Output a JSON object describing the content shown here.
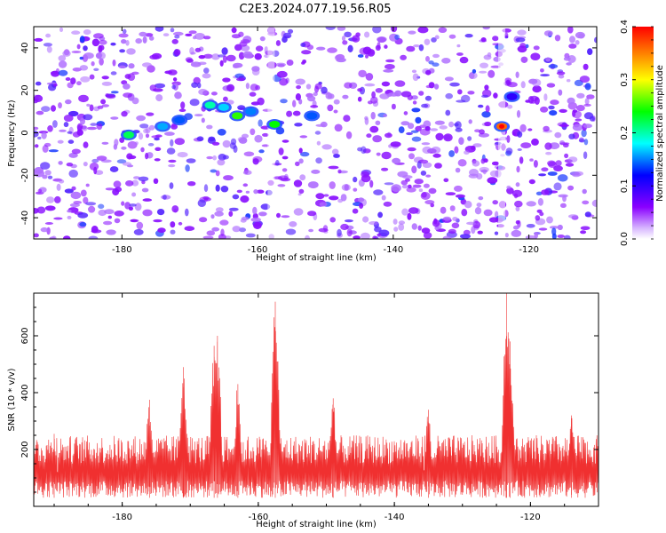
{
  "page_title": "C2E3.2024.077.19.56.R05",
  "chart_data": [
    {
      "type": "heatmap",
      "xlabel": "Height of straight line (km)",
      "ylabel": "Frequency (Hz)",
      "xlim": [
        -193,
        -110
      ],
      "ylim": [
        -50,
        50
      ],
      "x_ticks": [
        -180,
        -160,
        -140,
        -120
      ],
      "y_ticks": [
        -40,
        -20,
        0,
        20,
        40
      ],
      "colorbar": {
        "label": "Normalized spectral amplitude",
        "range": [
          0.0,
          0.4
        ],
        "ticks": [
          "0.0",
          "0.1",
          "0.2",
          "0.3",
          "0.4"
        ],
        "colors": [
          "#ffffff",
          "#8a00ff",
          "#0000ff",
          "#00ffff",
          "#00ff00",
          "#ffff00",
          "#ff0000"
        ]
      },
      "hotspots": [
        {
          "x": -179.0,
          "y": -1,
          "value": 0.22
        },
        {
          "x": -174.0,
          "y": 3,
          "value": 0.16
        },
        {
          "x": -171.5,
          "y": 6,
          "value": 0.14
        },
        {
          "x": -167.0,
          "y": 13,
          "value": 0.2
        },
        {
          "x": -165.0,
          "y": 12,
          "value": 0.17
        },
        {
          "x": -163.0,
          "y": 8,
          "value": 0.25
        },
        {
          "x": -161.0,
          "y": 10,
          "value": 0.15
        },
        {
          "x": -157.5,
          "y": 4,
          "value": 0.24
        },
        {
          "x": -152.0,
          "y": 8,
          "value": 0.14
        },
        {
          "x": -124.0,
          "y": 3,
          "value": 0.36
        },
        {
          "x": -122.5,
          "y": 17,
          "value": 0.1
        }
      ],
      "grid": false
    },
    {
      "type": "line",
      "xlabel": "Height of straight line (km)",
      "ylabel": "SNR (10 * v/v)",
      "xlim": [
        -193,
        -110
      ],
      "ylim": [
        0,
        750
      ],
      "x_ticks": [
        -180,
        -160,
        -140,
        -120
      ],
      "y_ticks": [
        200,
        400,
        600
      ],
      "color": "#f03030",
      "baseline": {
        "low": 30,
        "high": 230
      },
      "peaks": [
        {
          "x": -190.0,
          "y": 255
        },
        {
          "x": -176.0,
          "y": 375
        },
        {
          "x": -171.0,
          "y": 490
        },
        {
          "x": -166.5,
          "y": 565
        },
        {
          "x": -166.0,
          "y": 600
        },
        {
          "x": -163.0,
          "y": 430
        },
        {
          "x": -157.5,
          "y": 720
        },
        {
          "x": -149.0,
          "y": 380
        },
        {
          "x": -135.0,
          "y": 340
        },
        {
          "x": -123.5,
          "y": 750
        },
        {
          "x": -123.0,
          "y": 580
        },
        {
          "x": -114.0,
          "y": 320
        }
      ],
      "grid": false
    }
  ]
}
